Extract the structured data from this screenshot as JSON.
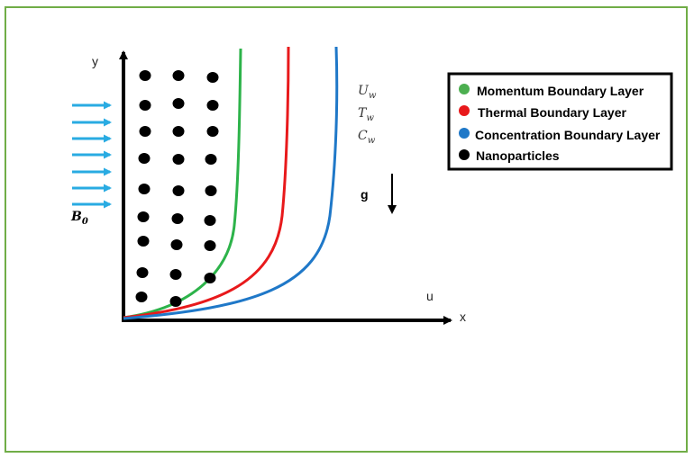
{
  "axes": {
    "x_label": "x",
    "y_label": "y",
    "velocity_label": "u"
  },
  "wall_conditions": [
    {
      "base": "U",
      "sub": "w"
    },
    {
      "base": "T",
      "sub": "w"
    },
    {
      "base": "C",
      "sub": "w"
    }
  ],
  "gravity": {
    "label": "g"
  },
  "magnetic_field": {
    "base": "B",
    "sub": "0",
    "arrow_color": "#29abe2"
  },
  "legend": [
    {
      "label": "Momentum Boundary Layer",
      "color": "#4caf50"
    },
    {
      "label": "Thermal Boundary Layer",
      "color": "#e8191b"
    },
    {
      "label": "Concentration Boundary Layer",
      "color": "#1f78c8"
    },
    {
      "label": "Nanoparticles",
      "color": "#000000"
    }
  ],
  "colors": {
    "frame": "#70ad47",
    "momentum": "#2db34a",
    "thermal": "#e8191b",
    "concentration": "#1f78c8",
    "particles": "#000000"
  }
}
